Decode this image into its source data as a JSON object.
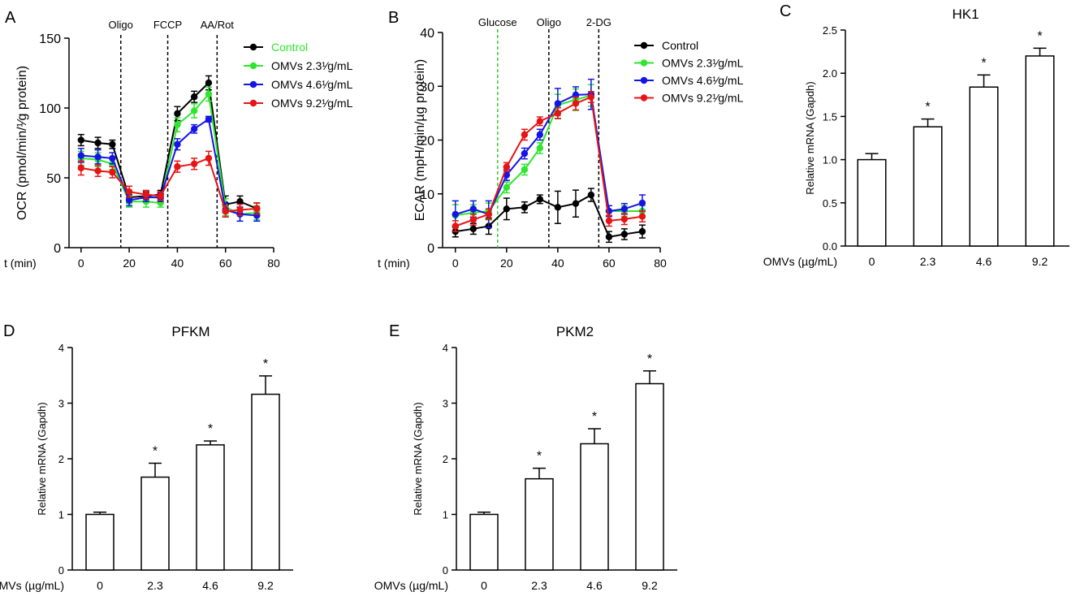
{
  "figure": {
    "panels": [
      "A",
      "B",
      "C",
      "D",
      "E"
    ],
    "colors": {
      "control": "#000000",
      "omv23": "#2ee62e",
      "omv46": "#1414e6",
      "omv92": "#e61414",
      "glucose_line": "#2ecc2e"
    }
  },
  "chart_data": [
    {
      "id": "A",
      "type": "line",
      "title": "",
      "xlabel": "t (min)",
      "ylabel": "OCR (pmol/min/¹⁄g protein)",
      "xlim": [
        -5,
        80
      ],
      "ylim": [
        0,
        150
      ],
      "xticks": [
        0,
        20,
        40,
        60,
        80
      ],
      "yticks": [
        0,
        50,
        100,
        150
      ],
      "grid": false,
      "legend_position": "top-right",
      "annotations": [
        {
          "x": 16.5,
          "label": "Oligo"
        },
        {
          "x": 36,
          "label": "FCCP"
        },
        {
          "x": 56.5,
          "label": "AA/Rot"
        }
      ],
      "x": [
        0,
        7,
        13,
        20,
        27,
        33,
        40,
        47,
        53,
        60,
        66,
        73
      ],
      "series": [
        {
          "name": "Control",
          "color": "#000000",
          "label_color": "#2ee62e",
          "values": [
            77,
            75,
            74,
            36,
            37,
            38,
            96,
            108,
            118,
            31,
            33,
            28
          ],
          "errors": [
            4,
            4,
            3,
            4,
            3,
            3,
            5,
            4,
            5,
            6,
            4,
            4
          ]
        },
        {
          "name": "OMVs 2.3¹⁄g/mL",
          "color": "#2ee62e",
          "label_color": "#000000",
          "values": [
            64,
            63,
            60,
            33,
            33,
            32,
            88,
            98,
            110,
            29,
            24,
            25
          ],
          "errors": [
            5,
            5,
            4,
            4,
            4,
            3,
            5,
            5,
            5,
            6,
            5,
            5
          ]
        },
        {
          "name": "OMVs 4.6¹⁄g/mL",
          "color": "#1414e6",
          "label_color": "#000000",
          "values": [
            66,
            65,
            64,
            34,
            36,
            36,
            74,
            85,
            92,
            27,
            24,
            23
          ],
          "errors": [
            5,
            5,
            4,
            4,
            3,
            3,
            4,
            3,
            2,
            5,
            5,
            4
          ]
        },
        {
          "name": "OMVs 9.2¹⁄g/mL",
          "color": "#e61414",
          "label_color": "#000000",
          "values": [
            57,
            55,
            54,
            40,
            38,
            37,
            58,
            60,
            64,
            26,
            27,
            28
          ],
          "errors": [
            5,
            4,
            4,
            4,
            3,
            3,
            4,
            4,
            5,
            4,
            4,
            4
          ]
        }
      ]
    },
    {
      "id": "B",
      "type": "line",
      "title": "",
      "xlabel": "t (min)",
      "ylabel": "ECAR (mpH/min/µg protein)",
      "xlim": [
        -5,
        80
      ],
      "ylim": [
        0,
        40
      ],
      "xticks": [
        0,
        20,
        40,
        60,
        80
      ],
      "yticks": [
        0,
        10,
        20,
        30,
        40
      ],
      "grid": false,
      "legend_position": "top-right",
      "annotations": [
        {
          "x": 16.5,
          "label": "Glucose",
          "color": "#2ecc2e"
        },
        {
          "x": 36.5,
          "label": "Oligo"
        },
        {
          "x": 56,
          "label": "2-DG"
        }
      ],
      "x": [
        0,
        7,
        13,
        20,
        27,
        33,
        40,
        47,
        53,
        60,
        66,
        73
      ],
      "series": [
        {
          "name": "Control",
          "color": "#000000",
          "values": [
            3,
            3.5,
            4,
            7.2,
            7.5,
            9,
            7.5,
            8.2,
            9.8,
            2,
            2.5,
            3
          ],
          "errors": [
            1,
            1,
            1.5,
            2,
            1,
            0.8,
            3,
            2.5,
            1.2,
            1,
            1,
            1.2
          ]
        },
        {
          "name": "OMVs 2.3¹⁄g/mL",
          "color": "#2ee62e",
          "values": [
            6,
            6.5,
            6.8,
            11.2,
            14.5,
            18.5,
            26.5,
            27.5,
            28.3,
            6.8,
            6.8,
            6.8
          ],
          "errors": [
            2,
            1.5,
            1.5,
            1,
            1,
            1,
            2,
            2,
            2,
            1,
            1,
            1
          ]
        },
        {
          "name": "OMVs 4.6¹⁄g/mL",
          "color": "#1414e6",
          "values": [
            6.2,
            7.2,
            6.2,
            13.5,
            17.5,
            21,
            26.8,
            28.4,
            28.5,
            6.8,
            7.2,
            8.3
          ],
          "errors": [
            2.5,
            1.5,
            2.5,
            1,
            1,
            1,
            2.8,
            1.5,
            2.8,
            1,
            1,
            1.5
          ]
        },
        {
          "name": "OMVs 9.2¹⁄g/mL",
          "color": "#e61414",
          "values": [
            4,
            5.2,
            6.2,
            15,
            21,
            23.5,
            25,
            26.8,
            28,
            5,
            5.3,
            5.8
          ],
          "errors": [
            1,
            1,
            1,
            0.8,
            1,
            0.8,
            1,
            1.2,
            1,
            1,
            1,
            1
          ]
        }
      ]
    },
    {
      "id": "C",
      "type": "bar",
      "title": "HK1",
      "xlabel": "OMVs (µg/mL)",
      "ylabel": "Relative mRNA (Gapdh)",
      "ylim": [
        0,
        2.5
      ],
      "yticks": [
        "0.0",
        "0.5",
        "1.0",
        "1.5",
        "2.0",
        "2.5"
      ],
      "categories": [
        "0",
        "2.3",
        "4.6",
        "9.2"
      ],
      "values": [
        1.0,
        1.38,
        1.84,
        2.2
      ],
      "errors": [
        0.07,
        0.09,
        0.14,
        0.09
      ],
      "significance": [
        "",
        "*",
        "*",
        "*"
      ]
    },
    {
      "id": "D",
      "type": "bar",
      "title": "PFKM",
      "xlabel": "OMVs (µg/mL)",
      "ylabel": "Relative mRNA (Gapdh)",
      "ylim": [
        0,
        4
      ],
      "yticks": [
        "0",
        "1",
        "2",
        "3",
        "4"
      ],
      "categories": [
        "0",
        "2.3",
        "4.6",
        "9.2"
      ],
      "values": [
        1.0,
        1.67,
        2.25,
        3.16
      ],
      "errors": [
        0.04,
        0.25,
        0.07,
        0.33
      ],
      "significance": [
        "",
        "*",
        "*",
        "*"
      ]
    },
    {
      "id": "E",
      "type": "bar",
      "title": "PKM2",
      "xlabel": "OMVs (µg/mL)",
      "ylabel": "Relative mRNA (Gapdh)",
      "ylim": [
        0,
        4
      ],
      "yticks": [
        "0",
        "1",
        "2",
        "3",
        "4"
      ],
      "categories": [
        "0",
        "2.3",
        "4.6",
        "9.2"
      ],
      "values": [
        1.0,
        1.64,
        2.27,
        3.35
      ],
      "errors": [
        0.04,
        0.19,
        0.27,
        0.23
      ],
      "significance": [
        "",
        "*",
        "*",
        "*"
      ]
    }
  ]
}
